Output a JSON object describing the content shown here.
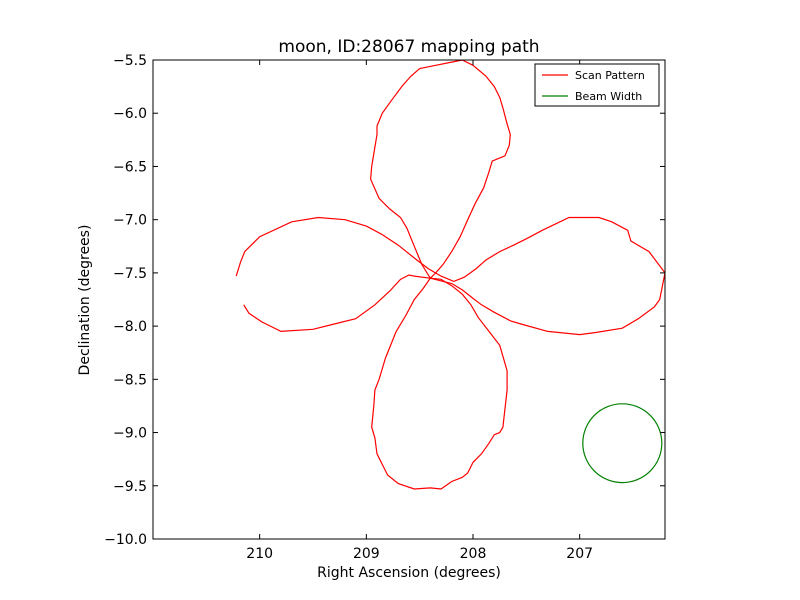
{
  "chart_data": {
    "type": "line",
    "title": "moon, ID:28067 mapping path",
    "xlabel": "Right Ascension (degrees)",
    "ylabel": "Declination (degrees)",
    "xlim": [
      211.0,
      206.2
    ],
    "ylim": [
      -10.0,
      -5.5
    ],
    "x_inverted": true,
    "xticks": [
      210,
      209,
      208,
      207
    ],
    "yticks": [
      -5.5,
      -6.0,
      -6.5,
      -7.0,
      -7.5,
      -8.0,
      -8.5,
      -9.0,
      -9.5,
      -10.0
    ],
    "xtick_labels": [
      "210",
      "209",
      "208",
      "207"
    ],
    "ytick_labels": [
      "−5.5",
      "−6.0",
      "−6.5",
      "−7.0",
      "−7.5",
      "−8.0",
      "−8.5",
      "−9.0",
      "−9.5",
      "−10.0"
    ],
    "grid": false,
    "legend_position": "top-right",
    "series": [
      {
        "name": "Scan Pattern",
        "color": "#ff0000",
        "x": [
          210.22,
          210.18,
          210.14,
          210.0,
          209.7,
          209.45,
          209.2,
          209.0,
          208.85,
          208.7,
          208.55,
          208.42,
          208.3,
          208.18,
          208.08,
          207.97,
          207.88,
          207.75,
          207.62,
          207.5,
          207.35,
          207.1,
          206.95,
          206.82,
          206.7,
          206.55,
          206.52,
          206.35,
          206.2,
          206.25,
          206.3,
          206.45,
          206.6,
          206.85,
          207.0,
          207.3,
          207.55,
          207.65,
          207.8,
          207.92,
          208.0,
          208.1,
          208.2,
          208.4,
          208.55,
          208.6,
          208.68,
          208.78,
          208.92,
          209.1,
          209.3,
          209.5,
          209.8,
          209.98,
          210.1,
          210.15
        ],
        "y": [
          -7.53,
          -7.4,
          -7.3,
          -7.16,
          -7.02,
          -6.98,
          -7.0,
          -7.06,
          -7.14,
          -7.24,
          -7.36,
          -7.46,
          -7.53,
          -7.58,
          -7.54,
          -7.46,
          -7.38,
          -7.3,
          -7.24,
          -7.18,
          -7.1,
          -6.98,
          -6.98,
          -6.98,
          -7.02,
          -7.1,
          -7.2,
          -7.3,
          -7.5,
          -7.75,
          -7.82,
          -7.93,
          -8.02,
          -8.06,
          -8.08,
          -8.05,
          -7.98,
          -7.95,
          -7.87,
          -7.8,
          -7.74,
          -7.66,
          -7.6,
          -7.55,
          -7.53,
          -7.52,
          -7.56,
          -7.67,
          -7.8,
          -7.93,
          -7.98,
          -8.03,
          -8.05,
          -7.96,
          -7.88,
          -7.8
        ]
      },
      {
        "name": "",
        "color": "#ff0000",
        "x": [
          208.4,
          208.35,
          208.28,
          208.2,
          208.12,
          208.05,
          207.98,
          207.9,
          207.85,
          207.82,
          207.7,
          207.66,
          207.65,
          207.68,
          207.72,
          207.75,
          207.8,
          207.88,
          208.0,
          208.1,
          208.2,
          208.35,
          208.5,
          208.58,
          208.66,
          208.75,
          208.85,
          208.9,
          208.9,
          208.95,
          208.96,
          208.88,
          208.78,
          208.68,
          208.62,
          208.55,
          208.48,
          208.4
        ],
        "y": [
          -7.55,
          -7.5,
          -7.42,
          -7.3,
          -7.16,
          -7.0,
          -6.85,
          -6.7,
          -6.55,
          -6.45,
          -6.4,
          -6.3,
          -6.2,
          -6.1,
          -5.95,
          -5.85,
          -5.75,
          -5.65,
          -5.55,
          -5.5,
          -5.52,
          -5.55,
          -5.58,
          -5.65,
          -5.74,
          -5.86,
          -6.0,
          -6.12,
          -6.2,
          -6.5,
          -6.62,
          -6.8,
          -6.9,
          -6.98,
          -7.08,
          -7.25,
          -7.42,
          -7.55
        ]
      },
      {
        "name": "",
        "color": "#ff0000",
        "x": [
          208.4,
          208.47,
          208.55,
          208.63,
          208.72,
          208.82,
          208.88,
          208.92,
          208.93,
          208.95,
          208.92,
          208.9,
          208.85,
          208.8,
          208.7,
          208.55,
          208.4,
          208.3,
          208.2,
          208.1,
          208.05,
          208.0,
          207.92,
          207.85,
          207.8,
          207.75,
          207.72,
          207.68,
          207.68,
          207.7,
          207.75,
          207.85,
          207.95,
          208.02,
          208.1,
          208.2,
          208.3,
          208.4
        ],
        "y": [
          -7.55,
          -7.65,
          -7.75,
          -7.9,
          -8.05,
          -8.3,
          -8.5,
          -8.6,
          -8.75,
          -8.95,
          -9.05,
          -9.2,
          -9.3,
          -9.4,
          -9.48,
          -9.53,
          -9.52,
          -9.53,
          -9.46,
          -9.42,
          -9.38,
          -9.28,
          -9.2,
          -9.1,
          -9.02,
          -9.0,
          -8.95,
          -8.6,
          -8.42,
          -8.35,
          -8.18,
          -8.05,
          -7.92,
          -7.8,
          -7.7,
          -7.62,
          -7.56,
          -7.55
        ]
      }
    ],
    "beam": {
      "name": "Beam Width",
      "color": "#008000",
      "center": [
        206.6,
        -9.1
      ],
      "radius_deg": 0.37
    }
  }
}
